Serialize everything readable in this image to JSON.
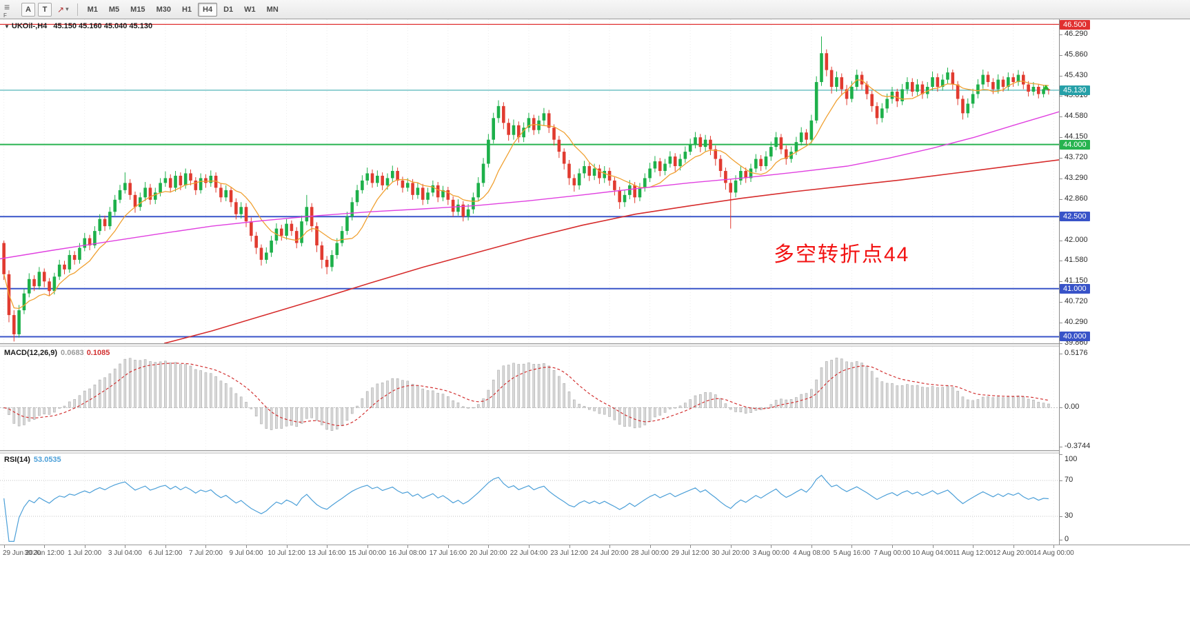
{
  "colors": {
    "bull": "#1db04a",
    "bear": "#e13b30",
    "ma_fast": "#f0a030",
    "ma_mid": "#e040e0",
    "ma_slow": "#d62b2b",
    "level_blue": "#3853c8",
    "level_green": "#27b34f",
    "level_red": "#e03030",
    "current": "#26a0a8",
    "macd_hist_fill": "#d9d9d9",
    "macd_hist_border": "#ababab",
    "macd_signal": "#d23030",
    "rsi_line": "#4b9fd8",
    "annotation": "#f21212"
  },
  "toolbar": {
    "corner_letter": "F",
    "a_button": "A",
    "t_button": "T",
    "arrow_glyph": "↗",
    "caret": "▾",
    "timeframes": [
      "M1",
      "M5",
      "M15",
      "M30",
      "H1",
      "H4",
      "D1",
      "W1",
      "MN"
    ],
    "active_timeframe": "H4"
  },
  "titlebar": {
    "expand_glyph": "▼",
    "symbol": "UKOil-,H4",
    "ohlc": "45.150 45.160 45.040 45.130"
  },
  "annotation": {
    "text": "多空转折点44"
  },
  "price_axis": {
    "labels": [
      "46.290",
      "45.860",
      "45.430",
      "45.010",
      "44.580",
      "44.150",
      "43.720",
      "43.290",
      "42.860",
      "42.000",
      "41.580",
      "41.150",
      "40.720",
      "40.290",
      "39.860"
    ],
    "badges": [
      {
        "label": "46.500",
        "price": 46.5,
        "color": "#e03030"
      },
      {
        "label": "45.130",
        "price": 45.13,
        "color": "#26a0a8",
        "current": true
      },
      {
        "label": "44.000",
        "price": 44.0,
        "color": "#27b34f"
      },
      {
        "label": "42.500",
        "price": 42.5,
        "color": "#3853c8"
      },
      {
        "label": "41.000",
        "price": 41.0,
        "color": "#3853c8"
      },
      {
        "label": "40.000",
        "price": 40.0,
        "color": "#3853c8"
      }
    ]
  },
  "levels": [
    {
      "price": 46.5,
      "color": "#e03030",
      "width": 1.2
    },
    {
      "price": 44.0,
      "color": "#27b34f",
      "width": 2
    },
    {
      "price": 42.5,
      "color": "#3853c8",
      "width": 2
    },
    {
      "price": 41.0,
      "color": "#3853c8",
      "width": 2
    },
    {
      "price": 40.0,
      "color": "#3853c8",
      "width": 2
    }
  ],
  "current_price": {
    "label": "45.130",
    "price": 45.13
  },
  "chart_data": {
    "type": "candlestick",
    "symbol": "UKOil-",
    "timeframe": "H4",
    "first_open": 41.95,
    "closes": [
      41.3,
      40.45,
      40.05,
      40.55,
      40.9,
      41.2,
      41.05,
      41.35,
      41.15,
      40.95,
      41.25,
      41.5,
      41.4,
      41.7,
      41.6,
      41.85,
      42.05,
      41.9,
      42.2,
      42.45,
      42.3,
      42.6,
      42.85,
      43.05,
      43.2,
      42.95,
      42.7,
      42.9,
      43.1,
      42.85,
      43.0,
      43.2,
      43.3,
      43.1,
      43.35,
      43.15,
      43.4,
      43.25,
      43.05,
      43.3,
      43.2,
      43.35,
      43.1,
      42.9,
      43.05,
      42.8,
      42.55,
      42.7,
      42.4,
      42.1,
      41.85,
      41.6,
      41.75,
      42.0,
      42.25,
      42.1,
      42.35,
      42.2,
      41.95,
      42.4,
      42.7,
      42.3,
      41.9,
      41.6,
      41.45,
      41.7,
      41.95,
      42.2,
      42.5,
      42.8,
      43.05,
      43.25,
      43.4,
      43.2,
      43.35,
      43.15,
      43.3,
      43.45,
      43.25,
      43.1,
      43.2,
      42.95,
      43.1,
      42.85,
      43.0,
      43.15,
      42.9,
      43.05,
      42.85,
      42.6,
      42.75,
      42.5,
      42.65,
      42.9,
      43.2,
      43.6,
      44.1,
      44.55,
      44.8,
      44.45,
      44.2,
      44.4,
      44.15,
      44.35,
      44.55,
      44.3,
      44.5,
      44.65,
      44.35,
      44.1,
      43.85,
      43.6,
      43.3,
      43.15,
      43.4,
      43.55,
      43.35,
      43.5,
      43.3,
      43.45,
      43.25,
      43.05,
      42.8,
      42.95,
      43.15,
      42.9,
      43.1,
      43.3,
      43.5,
      43.65,
      43.45,
      43.6,
      43.75,
      43.55,
      43.7,
      43.85,
      44.0,
      44.15,
      43.95,
      44.1,
      43.9,
      43.7,
      43.45,
      43.2,
      43.0,
      43.25,
      43.45,
      43.3,
      43.5,
      43.7,
      43.55,
      43.75,
      43.95,
      44.15,
      43.9,
      43.7,
      43.85,
      44.05,
      44.25,
      44.1,
      44.5,
      45.3,
      45.9,
      45.55,
      45.2,
      45.4,
      45.15,
      44.95,
      45.2,
      45.45,
      45.25,
      45.05,
      44.8,
      44.55,
      44.75,
      44.95,
      45.1,
      44.9,
      45.15,
      45.3,
      45.1,
      45.25,
      45.05,
      45.2,
      45.4,
      45.2,
      45.35,
      45.5,
      45.25,
      44.95,
      44.65,
      44.85,
      45.05,
      45.25,
      45.45,
      45.3,
      45.15,
      45.35,
      45.2,
      45.4,
      45.3,
      45.45,
      45.25,
      45.1,
      45.2,
      45.05,
      45.15,
      45.13
    ],
    "highs": [
      42.0,
      41.38,
      40.55,
      40.66,
      41.0,
      41.32,
      41.28,
      41.45,
      41.42,
      41.22,
      41.33,
      41.6,
      41.58,
      41.8,
      41.78,
      41.95,
      42.16,
      42.12,
      42.3,
      42.55,
      42.52,
      42.7,
      42.95,
      43.16,
      43.42,
      43.28,
      43.02,
      43.0,
      43.22,
      43.18,
      43.1,
      43.3,
      43.44,
      43.38,
      43.45,
      43.42,
      43.5,
      43.48,
      43.32,
      43.4,
      43.38,
      43.46,
      43.42,
      43.18,
      43.15,
      43.12,
      42.88,
      42.8,
      42.78,
      42.48,
      42.18,
      41.92,
      41.86,
      42.1,
      42.36,
      42.33,
      42.45,
      42.42,
      42.28,
      42.52,
      42.95,
      42.78,
      42.38,
      41.98,
      41.68,
      41.8,
      42.05,
      42.3,
      42.6,
      42.9,
      43.16,
      43.36,
      43.52,
      43.48,
      43.46,
      43.42,
      43.4,
      43.56,
      43.52,
      43.33,
      43.3,
      43.28,
      43.2,
      43.18,
      43.1,
      43.25,
      43.22,
      43.14,
      43.12,
      42.92,
      42.86,
      42.82,
      42.76,
      43.0,
      43.32,
      43.72,
      44.22,
      44.66,
      44.92,
      44.88,
      44.54,
      44.52,
      44.48,
      44.46,
      44.66,
      44.62,
      44.6,
      44.76,
      44.72,
      44.42,
      44.18,
      43.92,
      43.68,
      43.38,
      43.5,
      43.66,
      43.62,
      43.6,
      43.58,
      43.55,
      43.52,
      43.32,
      43.12,
      43.06,
      43.26,
      43.22,
      43.2,
      43.4,
      43.62,
      43.76,
      43.72,
      43.7,
      43.86,
      43.82,
      43.8,
      43.96,
      44.12,
      44.26,
      44.22,
      44.2,
      44.18,
      43.98,
      43.78,
      43.52,
      43.28,
      43.36,
      43.56,
      43.52,
      43.6,
      43.8,
      43.78,
      43.86,
      44.06,
      44.26,
      44.22,
      43.98,
      43.96,
      44.16,
      44.36,
      44.32,
      44.62,
      45.42,
      46.25,
      45.98,
      45.62,
      45.52,
      45.48,
      45.24,
      45.32,
      45.56,
      45.52,
      45.32,
      45.12,
      44.88,
      44.86,
      45.06,
      45.2,
      45.16,
      45.26,
      45.4,
      45.38,
      45.36,
      45.32,
      45.3,
      45.52,
      45.48,
      45.46,
      45.6,
      45.56,
      45.32,
      45.02,
      44.96,
      45.16,
      45.36,
      45.56,
      45.52,
      45.38,
      45.46,
      45.42,
      45.5,
      45.48,
      45.55,
      45.52,
      45.32,
      45.3,
      45.26,
      45.24,
      45.16
    ],
    "lows": [
      41.18,
      40.3,
      39.9,
      39.98,
      40.47,
      40.82,
      40.95,
      40.98,
      41.03,
      40.86,
      40.88,
      41.18,
      41.3,
      41.33,
      41.5,
      41.52,
      41.78,
      41.8,
      41.84,
      42.12,
      42.2,
      42.23,
      42.52,
      42.78,
      42.98,
      42.85,
      42.58,
      42.62,
      42.82,
      42.75,
      42.76,
      42.92,
      43.12,
      43.0,
      43.02,
      43.05,
      43.08,
      43.15,
      42.95,
      42.98,
      43.1,
      43.12,
      43.0,
      42.8,
      42.82,
      42.7,
      42.44,
      42.46,
      42.28,
      41.98,
      41.72,
      41.48,
      41.52,
      41.66,
      41.92,
      42.0,
      42.02,
      42.1,
      41.84,
      41.88,
      42.32,
      42.18,
      41.76,
      41.42,
      41.3,
      41.36,
      41.62,
      41.88,
      42.12,
      42.42,
      42.72,
      42.98,
      43.16,
      43.1,
      43.12,
      43.05,
      43.06,
      43.22,
      43.15,
      43.0,
      43.02,
      42.85,
      42.87,
      42.74,
      42.76,
      42.92,
      42.8,
      42.82,
      42.74,
      42.5,
      42.52,
      42.4,
      42.42,
      42.56,
      42.82,
      43.12,
      43.52,
      44.02,
      44.45,
      44.32,
      44.08,
      44.1,
      44.04,
      44.05,
      44.26,
      44.2,
      44.22,
      44.4,
      44.24,
      43.98,
      43.72,
      43.48,
      43.16,
      43.02,
      43.06,
      43.3,
      43.24,
      43.26,
      43.18,
      43.2,
      43.14,
      42.94,
      42.66,
      42.7,
      42.86,
      42.78,
      42.82,
      43.02,
      43.22,
      43.42,
      43.34,
      43.36,
      43.52,
      43.44,
      43.46,
      43.62,
      43.78,
      43.92,
      43.84,
      43.86,
      43.78,
      43.56,
      43.32,
      43.06,
      42.25,
      42.9,
      43.16,
      43.2,
      43.22,
      43.42,
      43.45,
      43.48,
      43.66,
      43.88,
      43.8,
      43.58,
      43.62,
      43.78,
      43.98,
      44.0,
      44.02,
      44.44,
      45.22,
      45.42,
      45.06,
      45.1,
      45.02,
      44.82,
      44.88,
      45.12,
      45.14,
      44.94,
      44.68,
      44.42,
      44.46,
      44.66,
      44.85,
      44.78,
      44.82,
      45.05,
      45.0,
      45.02,
      44.95,
      44.96,
      45.12,
      45.1,
      45.12,
      45.26,
      45.14,
      44.82,
      44.52,
      44.56,
      44.76,
      44.96,
      45.16,
      45.2,
      45.05,
      45.06,
      45.1,
      45.12,
      45.2,
      45.22,
      45.15,
      45.0,
      45.02,
      44.96,
      44.98,
      45.04
    ],
    "ma_fast_period": 9,
    "ma_mid_path": [
      [
        0,
        41.62
      ],
      [
        0.05,
        41.8
      ],
      [
        0.1,
        41.97
      ],
      [
        0.15,
        42.14
      ],
      [
        0.2,
        42.3
      ],
      [
        0.25,
        42.42
      ],
      [
        0.3,
        42.52
      ],
      [
        0.35,
        42.6
      ],
      [
        0.4,
        42.66
      ],
      [
        0.45,
        42.73
      ],
      [
        0.5,
        42.83
      ],
      [
        0.55,
        42.95
      ],
      [
        0.6,
        43.08
      ],
      [
        0.65,
        43.2
      ],
      [
        0.7,
        43.3
      ],
      [
        0.75,
        43.42
      ],
      [
        0.8,
        43.55
      ],
      [
        0.84,
        43.72
      ],
      [
        0.88,
        43.92
      ],
      [
        0.92,
        44.15
      ],
      [
        0.96,
        44.42
      ],
      [
        1,
        44.68
      ]
    ],
    "ma_slow_path": [
      [
        0.155,
        39.86
      ],
      [
        0.2,
        40.12
      ],
      [
        0.25,
        40.45
      ],
      [
        0.3,
        40.78
      ],
      [
        0.35,
        41.12
      ],
      [
        0.4,
        41.45
      ],
      [
        0.45,
        41.75
      ],
      [
        0.5,
        42.05
      ],
      [
        0.55,
        42.32
      ],
      [
        0.6,
        42.55
      ],
      [
        0.65,
        42.72
      ],
      [
        0.7,
        42.88
      ],
      [
        0.75,
        43.02
      ],
      [
        0.8,
        43.14
      ],
      [
        0.85,
        43.26
      ],
      [
        0.9,
        43.4
      ],
      [
        0.95,
        43.54
      ],
      [
        1,
        43.68
      ]
    ],
    "indicators": {
      "macd": {
        "name": "MACD(12,26,9)",
        "value_main": "0.0683",
        "value_signal": "0.1085",
        "fast": 12,
        "slow": 26,
        "signal": 9,
        "scale": [
          {
            "label": "0.5176",
            "v": 0.5176
          },
          {
            "label": "0.00",
            "v": 0
          },
          {
            "label": "-0.3744",
            "v": -0.3744
          }
        ]
      },
      "rsi": {
        "name": "RSI(14)",
        "value": "53.0535",
        "period": 14,
        "levels": [
          70,
          30
        ],
        "scale": [
          {
            "label": "100",
            "v": 100
          },
          {
            "label": "70",
            "v": 70
          },
          {
            "label": "30",
            "v": 30
          },
          {
            "label": "0",
            "v": 0
          }
        ]
      }
    },
    "x_labels": [
      "29 Jun 2020",
      "30 Jun 12:00",
      "1 Jul 20:00",
      "3 Jul 04:00",
      "6 Jul 12:00",
      "7 Jul 20:00",
      "9 Jul 04:00",
      "10 Jul 12:00",
      "13 Jul 16:00",
      "15 Jul 00:00",
      "16 Jul 08:00",
      "17 Jul 16:00",
      "20 Jul 20:00",
      "22 Jul 04:00",
      "23 Jul 12:00",
      "24 Jul 20:00",
      "28 Jul 00:00",
      "29 Jul 12:00",
      "30 Jul 20:00",
      "3 Aug 00:00",
      "4 Aug 08:00",
      "5 Aug 16:00",
      "7 Aug 00:00",
      "10 Aug 04:00",
      "11 Aug 12:00",
      "12 Aug 20:00",
      "14 Aug 00:00"
    ]
  }
}
